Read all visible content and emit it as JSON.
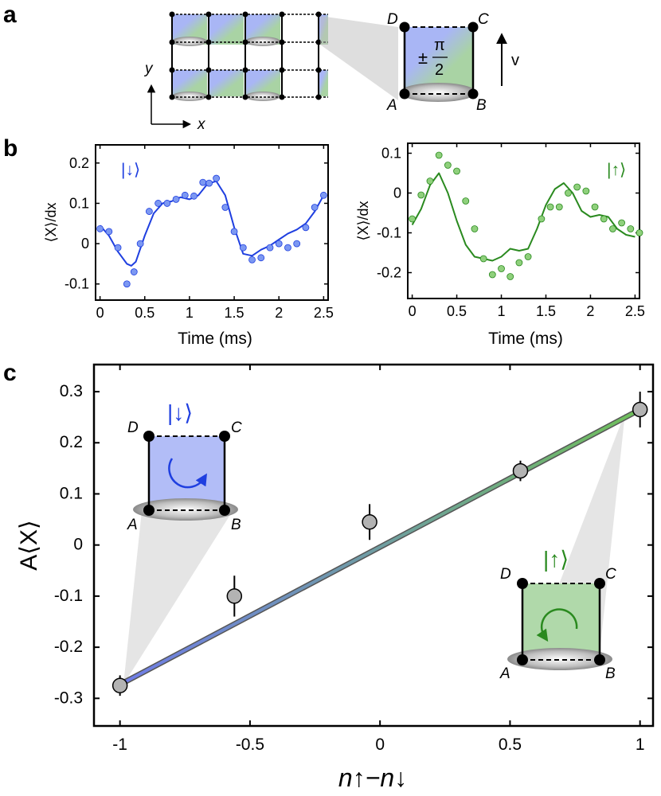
{
  "colors": {
    "blue": "#1f3fe0",
    "green": "#2a8a1f",
    "blue_fill": "#a9b6f5",
    "green_fill": "#a9d3a4",
    "point_gray": "#b3b3b3",
    "blue_points": "#7c98f2",
    "green_points": "#8fd07c"
  },
  "panel_a": {
    "letter": "a",
    "y_axis": "y",
    "x_axis": "x",
    "corners": [
      "D",
      "C",
      "A",
      "B"
    ],
    "phase_sign": "±",
    "phase_num": "π",
    "phase_den": "2",
    "velocity": "v"
  },
  "panel_b": {
    "letter": "b"
  },
  "panel_c": {
    "letter": "c"
  },
  "chart_data": [
    {
      "type": "line",
      "title": "|↓⟩",
      "xlabel": "Time (ms)",
      "ylabel": "⟨X⟩/dx",
      "xlim": [
        -0.05,
        2.55
      ],
      "ylim": [
        -0.14,
        0.245
      ],
      "xticks": [
        0,
        0.5,
        1,
        1.5,
        2,
        2.5
      ],
      "xtick_labels": [
        "0",
        "0.5",
        "1",
        "1.5",
        "2",
        "2.5"
      ],
      "yticks": [
        -0.1,
        0,
        0.1,
        0.2
      ],
      "ytick_labels": [
        "-0.1",
        "0",
        "0.1",
        "0.2"
      ],
      "series": [
        {
          "name": "data",
          "style": "points",
          "x": [
            0.0,
            0.1,
            0.2,
            0.3,
            0.38,
            0.45,
            0.55,
            0.65,
            0.75,
            0.85,
            0.95,
            1.05,
            1.15,
            1.22,
            1.3,
            1.4,
            1.5,
            1.6,
            1.7,
            1.8,
            1.9,
            2.0,
            2.1,
            2.2,
            2.3,
            2.4,
            2.5
          ],
          "y": [
            0.037,
            0.03,
            -0.01,
            -0.1,
            -0.07,
            0.0,
            0.08,
            0.1,
            0.1,
            0.11,
            0.12,
            0.118,
            0.152,
            0.15,
            0.162,
            0.09,
            0.03,
            -0.01,
            -0.04,
            -0.035,
            -0.01,
            0.0,
            -0.01,
            0.0,
            0.04,
            0.09,
            0.12
          ]
        },
        {
          "name": "fit",
          "style": "line",
          "x": [
            0.0,
            0.1,
            0.2,
            0.3,
            0.35,
            0.4,
            0.5,
            0.6,
            0.7,
            0.8,
            0.9,
            1.0,
            1.1,
            1.2,
            1.3,
            1.4,
            1.5,
            1.6,
            1.7,
            1.8,
            1.9,
            2.0,
            2.1,
            2.2,
            2.3,
            2.4,
            2.5
          ],
          "y": [
            0.045,
            0.02,
            -0.02,
            -0.05,
            -0.055,
            -0.045,
            0.02,
            0.075,
            0.1,
            0.105,
            0.115,
            0.11,
            0.12,
            0.148,
            0.155,
            0.12,
            0.04,
            -0.025,
            -0.03,
            -0.015,
            -0.005,
            0.01,
            0.025,
            0.035,
            0.05,
            0.08,
            0.12
          ]
        }
      ]
    },
    {
      "type": "line",
      "title": "|↑⟩",
      "xlabel": "Time (ms)",
      "ylabel": "⟨X⟩/dx",
      "xlim": [
        -0.05,
        2.55
      ],
      "ylim": [
        -0.265,
        0.125
      ],
      "xticks": [
        0,
        0.5,
        1,
        1.5,
        2,
        2.5
      ],
      "xtick_labels": [
        "0",
        "0.5",
        "1",
        "1.5",
        "2",
        "2.5"
      ],
      "yticks": [
        -0.2,
        -0.1,
        0,
        0.1
      ],
      "ytick_labels": [
        "-0.2",
        "-0.1",
        "0",
        "0.1"
      ],
      "series": [
        {
          "name": "data",
          "style": "points",
          "x": [
            0.0,
            0.1,
            0.2,
            0.3,
            0.4,
            0.5,
            0.6,
            0.7,
            0.8,
            0.9,
            1.0,
            1.1,
            1.2,
            1.3,
            1.45,
            1.55,
            1.65,
            1.75,
            1.85,
            1.95,
            2.05,
            2.15,
            2.25,
            2.35,
            2.45,
            2.55
          ],
          "y": [
            -0.065,
            -0.005,
            0.03,
            0.095,
            0.07,
            0.055,
            -0.02,
            -0.09,
            -0.165,
            -0.205,
            -0.19,
            -0.21,
            -0.175,
            -0.16,
            -0.065,
            -0.035,
            -0.035,
            0.0,
            0.015,
            0.005,
            -0.035,
            -0.065,
            -0.09,
            -0.075,
            -0.09,
            -0.1
          ]
        },
        {
          "name": "fit",
          "style": "line",
          "x": [
            0.0,
            0.1,
            0.2,
            0.3,
            0.4,
            0.5,
            0.6,
            0.7,
            0.8,
            0.9,
            1.0,
            1.1,
            1.2,
            1.3,
            1.4,
            1.5,
            1.6,
            1.7,
            1.8,
            1.9,
            2.0,
            2.1,
            2.2,
            2.3,
            2.4,
            2.5
          ],
          "y": [
            -0.08,
            -0.04,
            0.02,
            0.05,
            0.0,
            -0.07,
            -0.13,
            -0.16,
            -0.165,
            -0.17,
            -0.16,
            -0.14,
            -0.145,
            -0.14,
            -0.09,
            -0.03,
            0.01,
            0.025,
            0.0,
            -0.045,
            -0.06,
            -0.055,
            -0.06,
            -0.09,
            -0.105,
            -0.11
          ]
        }
      ]
    },
    {
      "type": "scatter",
      "title": "",
      "xlabel": "n↑−n↓",
      "ylabel": "A⟨X⟩",
      "xlim": [
        -1.1,
        1.05
      ],
      "ylim": [
        -0.354,
        0.353
      ],
      "xticks": [
        -1,
        -0.5,
        0,
        0.5,
        1
      ],
      "xtick_labels": [
        "-1",
        "-0.5",
        "0",
        "0.5",
        "1"
      ],
      "yticks": [
        -0.3,
        -0.2,
        -0.1,
        0,
        0.1,
        0.2,
        0.3
      ],
      "ytick_labels": [
        "-0.3",
        "-0.2",
        "-0.1",
        "0",
        "0.1",
        "0.2",
        "0.3"
      ],
      "series": [
        {
          "name": "data",
          "style": "points-errorbars",
          "x": [
            -1.0,
            -0.56,
            -0.04,
            0.54,
            1.0
          ],
          "y": [
            -0.275,
            -0.1,
            0.045,
            0.145,
            0.265
          ],
          "err": [
            0.02,
            0.04,
            0.035,
            0.02,
            0.035
          ]
        },
        {
          "name": "linear fit",
          "style": "line",
          "x": [
            -1.0,
            1.0
          ],
          "y": [
            -0.273,
            0.265
          ]
        }
      ],
      "annotations": {
        "inset_down": {
          "label": "|↓⟩",
          "corners": [
            "D",
            "C",
            "A",
            "B"
          ]
        },
        "inset_up": {
          "label": "|↑⟩",
          "corners": [
            "D",
            "C",
            "A",
            "B"
          ]
        }
      }
    }
  ]
}
